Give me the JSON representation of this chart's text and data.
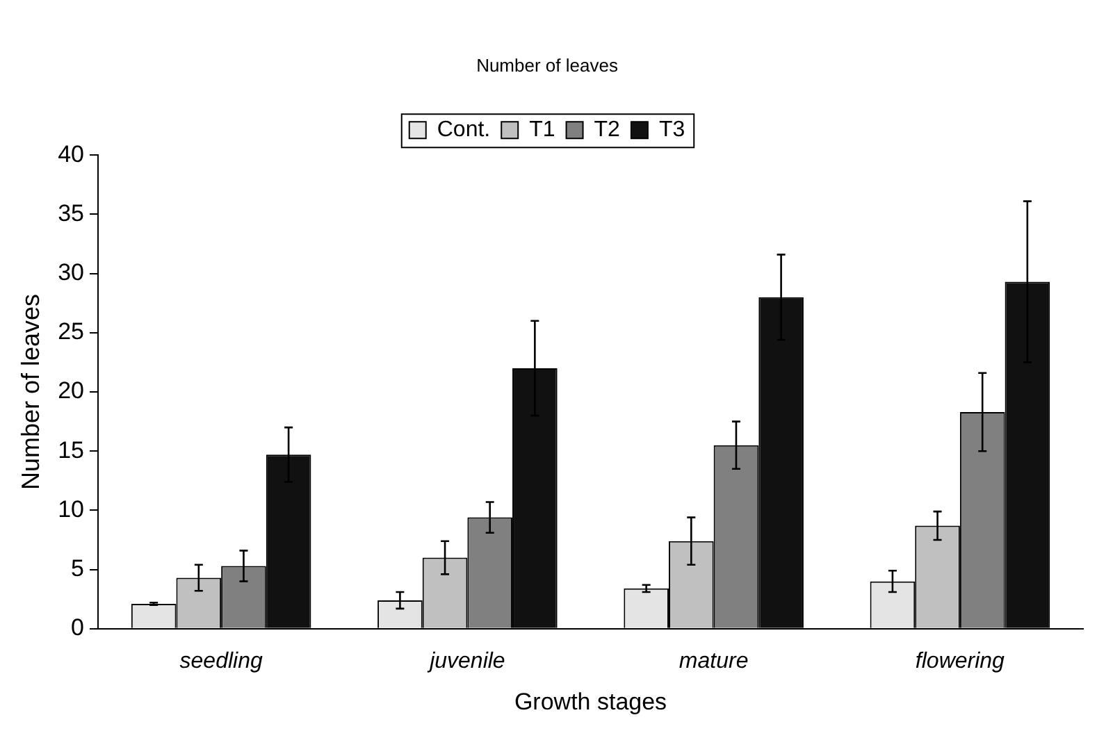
{
  "chart_data": {
    "type": "bar",
    "title": "Number of leaves",
    "xlabel": "Growth stages",
    "ylabel": "Number of leaves",
    "categories": [
      "seedling",
      "juvenile",
      "mature",
      "flowering"
    ],
    "series": [
      {
        "name": "Cont.",
        "color": "#e4e4e4",
        "values": [
          2.1,
          2.4,
          3.4,
          4.0
        ],
        "errors": [
          0.1,
          0.7,
          0.3,
          0.9
        ]
      },
      {
        "name": "T1",
        "color": "#c0c0c0",
        "values": [
          4.3,
          6.0,
          7.4,
          8.7
        ],
        "errors": [
          1.1,
          1.4,
          2.0,
          1.2
        ]
      },
      {
        "name": "T2",
        "color": "#808080",
        "values": [
          5.3,
          9.4,
          15.5,
          18.3
        ],
        "errors": [
          1.3,
          1.3,
          2.0,
          3.3
        ]
      },
      {
        "name": "T3",
        "color": "#111111",
        "values": [
          14.7,
          22.0,
          28.0,
          29.3
        ],
        "errors": [
          2.3,
          4.0,
          3.6,
          6.8
        ]
      }
    ],
    "ylim": [
      0,
      40
    ],
    "yticks": [
      0,
      5,
      10,
      15,
      20,
      25,
      30,
      35,
      40
    ],
    "grid": false,
    "legend": "top"
  }
}
